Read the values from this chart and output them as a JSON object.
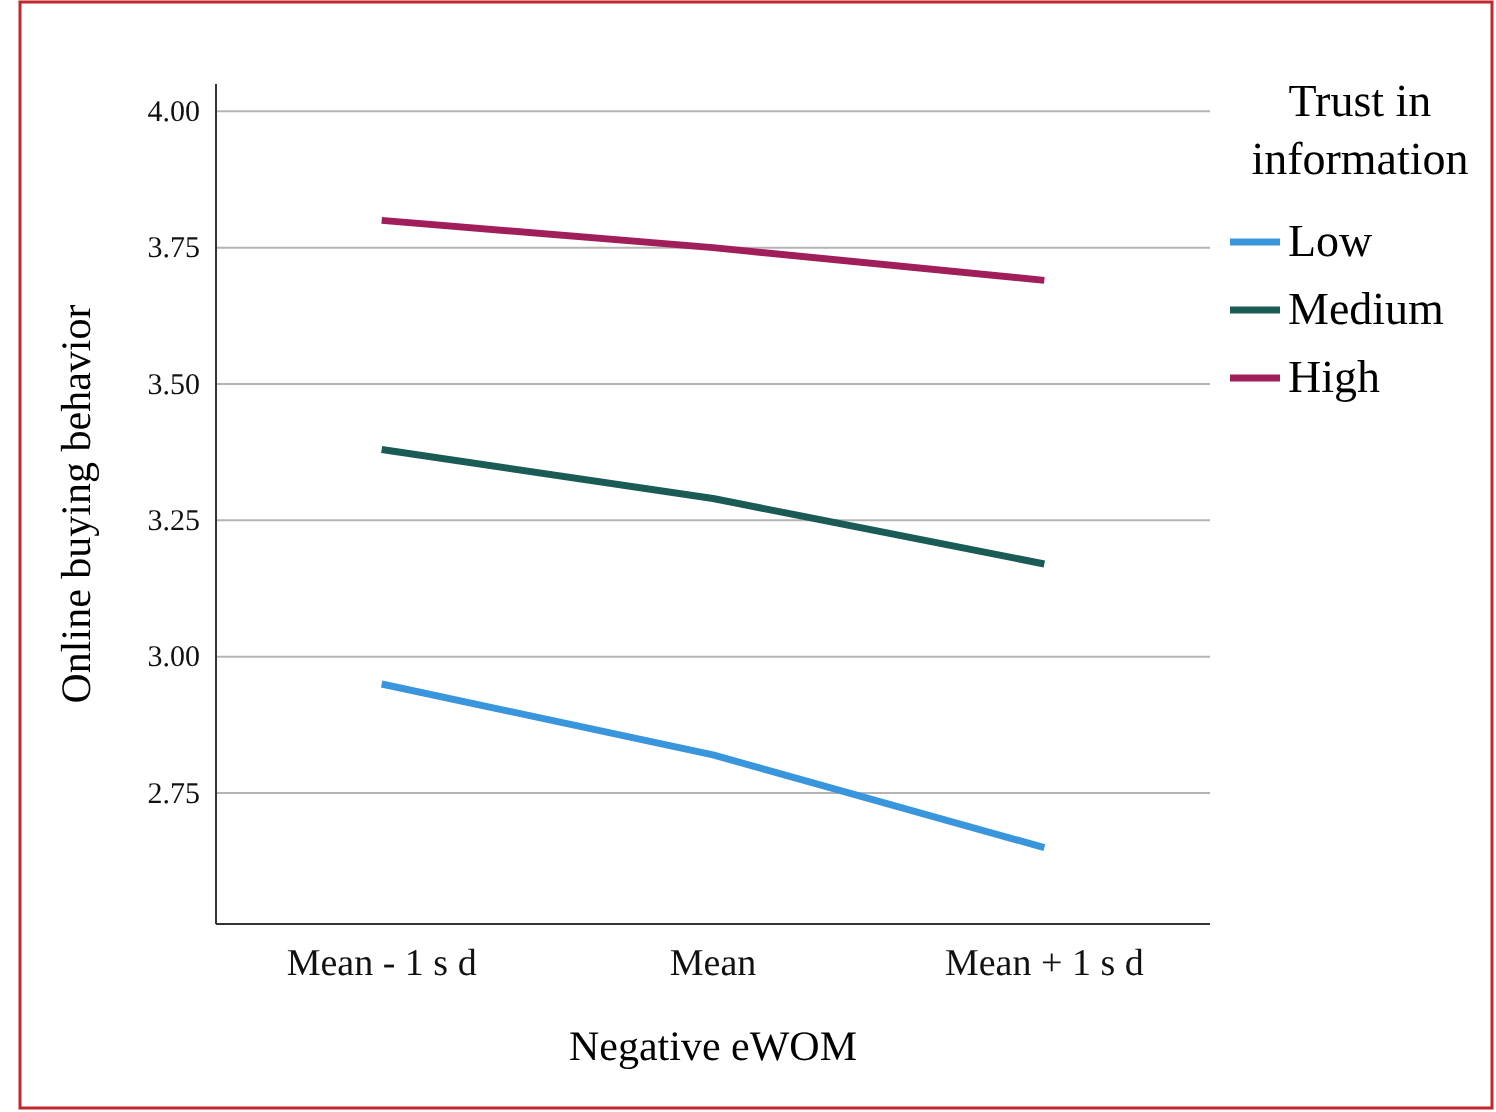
{
  "chart_data": {
    "type": "line",
    "xlabel": "Negative eWOM",
    "ylabel": "Online buying behavior",
    "legend_title": "Trust in information",
    "categories": [
      "Mean - 1 s d",
      "Mean",
      "Mean + 1 s d"
    ],
    "series": [
      {
        "name": "Low",
        "color": "#3a96dc",
        "values": [
          2.95,
          2.82,
          2.65
        ]
      },
      {
        "name": "Medium",
        "color": "#1a5c55",
        "values": [
          3.38,
          3.29,
          3.17
        ]
      },
      {
        "name": "High",
        "color": "#a01e5a",
        "values": [
          3.8,
          3.75,
          3.69
        ]
      }
    ],
    "ylim": [
      2.51,
      4.05
    ],
    "yticks": [
      {
        "value": 2.75,
        "label": "2.75"
      },
      {
        "value": 3,
        "label": "3.00"
      },
      {
        "value": 3.25,
        "label": "3.25"
      },
      {
        "value": 3.5,
        "label": "3.50"
      },
      {
        "value": 3.75,
        "label": "3.75"
      },
      {
        "value": 4,
        "label": "4.00"
      }
    ],
    "grid": "y",
    "legend": "right",
    "marker": "none",
    "line_style": "solid"
  }
}
